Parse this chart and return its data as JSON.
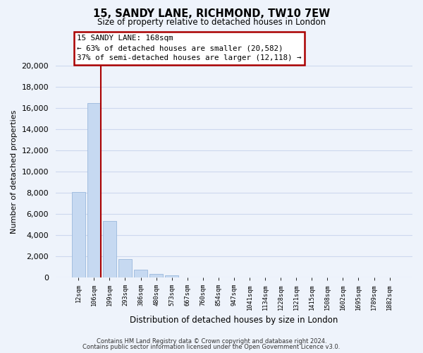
{
  "title_line1": "15, SANDY LANE, RICHMOND, TW10 7EW",
  "title_line2": "Size of property relative to detached houses in London",
  "xlabel": "Distribution of detached houses by size in London",
  "ylabel": "Number of detached properties",
  "categories": [
    "12sqm",
    "106sqm",
    "199sqm",
    "293sqm",
    "386sqm",
    "480sqm",
    "573sqm",
    "667sqm",
    "760sqm",
    "854sqm",
    "947sqm",
    "1041sqm",
    "1134sqm",
    "1228sqm",
    "1321sqm",
    "1415sqm",
    "1508sqm",
    "1602sqm",
    "1695sqm",
    "1789sqm",
    "1882sqm"
  ],
  "values": [
    8100,
    16500,
    5300,
    1750,
    750,
    300,
    200,
    0,
    0,
    0,
    0,
    0,
    0,
    0,
    0,
    0,
    0,
    0,
    0,
    0,
    0
  ],
  "bar_color": "#c6d9f1",
  "bar_edge_color": "#9ab8dc",
  "vline_color": "#aa0000",
  "annotation_title": "15 SANDY LANE: 168sqm",
  "annotation_line1": "← 63% of detached houses are smaller (20,582)",
  "annotation_line2": "37% of semi-detached houses are larger (12,118) →",
  "annotation_box_color": "#ffffff",
  "annotation_box_edge_color": "#aa0000",
  "ylim_max": 20000,
  "yticks": [
    0,
    2000,
    4000,
    6000,
    8000,
    10000,
    12000,
    14000,
    16000,
    18000,
    20000
  ],
  "footer_line1": "Contains HM Land Registry data © Crown copyright and database right 2024.",
  "footer_line2": "Contains public sector information licensed under the Open Government Licence v3.0.",
  "bg_color": "#eef3fb",
  "grid_color": "#cdd8ee"
}
